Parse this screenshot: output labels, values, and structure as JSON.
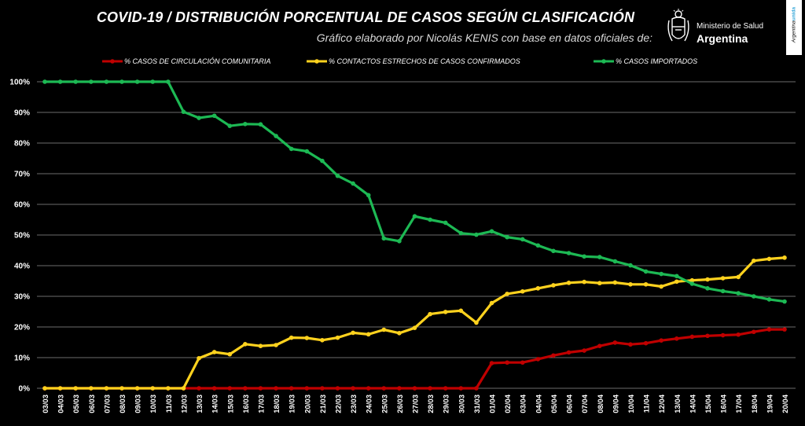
{
  "header": {
    "title": "COVID-19  /  DISTRIBUCIÓN PORCENTUAL DE CASOS SEGÚN CLASIFICACIÓN",
    "subtitle": "Gráfico elaborado por Nicolás KENIS con base en datos oficiales de:",
    "logo_line1": "Ministerio de Salud",
    "logo_line2": "Argentina",
    "badge_prefix": "Argentina",
    "badge_suffix": "unida"
  },
  "colors": {
    "background": "#000000",
    "comunitaria": "#c00000",
    "contactos": "#ffd21e",
    "importados": "#1db954",
    "grid": "#ffffff"
  },
  "chart_data": {
    "type": "line",
    "title": "COVID-19  /  DISTRIBUCIÓN PORCENTUAL DE CASOS SEGÚN CLASIFICACIÓN",
    "xlabel": "",
    "ylabel": "",
    "ylim": [
      0,
      100
    ],
    "yticks": [
      "0%",
      "10%",
      "20%",
      "30%",
      "40%",
      "50%",
      "60%",
      "70%",
      "80%",
      "90%",
      "100%"
    ],
    "grid": true,
    "legend_position": "top",
    "categories": [
      "03/03",
      "04/03",
      "05/03",
      "06/03",
      "07/03",
      "08/03",
      "09/03",
      "10/03",
      "11/03",
      "12/03",
      "13/03",
      "14/03",
      "15/03",
      "16/03",
      "17/03",
      "18/03",
      "19/03",
      "20/03",
      "21/03",
      "22/03",
      "23/03",
      "24/03",
      "25/03",
      "26/03",
      "27/03",
      "28/03",
      "29/03",
      "30/03",
      "31/03",
      "01/04",
      "02/04",
      "03/04",
      "04/04",
      "05/04",
      "06/04",
      "07/04",
      "08/04",
      "09/04",
      "10/04",
      "11/04",
      "12/04",
      "13/04",
      "14/04",
      "15/04",
      "16/04",
      "17/04",
      "18/04",
      "19/04",
      "20/04"
    ],
    "series": [
      {
        "name": "% CASOS DE CIRCULACIÓN COMUNITARIA",
        "color": "#c00000",
        "values": [
          0,
          0,
          0,
          0,
          0,
          0,
          0,
          0,
          0,
          0,
          0,
          0,
          0,
          0,
          0,
          0,
          0,
          0,
          0,
          0,
          0,
          0,
          0,
          0,
          0,
          0,
          0,
          0,
          0,
          8.2,
          8.4,
          8.4,
          9.5,
          10.7,
          11.7,
          12.3,
          13.8,
          14.9,
          14.3,
          14.7,
          15.6,
          16.2,
          16.8,
          17.1,
          17.3,
          17.5,
          18.4,
          19.2,
          19.2
        ]
      },
      {
        "name": "% CONTACTOS ESTRECHOS DE CASOS CONFIRMADOS",
        "color": "#ffd21e",
        "values": [
          0,
          0,
          0,
          0,
          0,
          0,
          0,
          0,
          0,
          0,
          9.8,
          11.8,
          11.1,
          14.4,
          13.8,
          14.1,
          16.5,
          16.4,
          15.7,
          16.5,
          18.1,
          17.6,
          19.1,
          18.0,
          19.7,
          24.2,
          24.9,
          25.3,
          21.4,
          27.8,
          30.8,
          31.6,
          32.6,
          33.6,
          34.4,
          34.7,
          34.3,
          34.5,
          33.9,
          33.9,
          33.2,
          34.8,
          35.2,
          35.5,
          35.9,
          36.3,
          41.6,
          42.2,
          42.6
        ]
      },
      {
        "name": "% CASOS IMPORTADOS",
        "color": "#1db954",
        "values": [
          100,
          100,
          100,
          100,
          100,
          100,
          100,
          100,
          100,
          90.2,
          88.2,
          88.9,
          85.6,
          86.2,
          86.1,
          82.3,
          78.1,
          77.3,
          74.2,
          69.3,
          66.8,
          63.0,
          48.9,
          48.0,
          56.1,
          55.0,
          54.0,
          50.6,
          50.1,
          51.2,
          49.3,
          48.6,
          46.6,
          44.8,
          44.1,
          43.0,
          42.8,
          41.4,
          40.1,
          38.1,
          37.3,
          36.6,
          34.1,
          32.6,
          31.7,
          31.0,
          30.0,
          29.0,
          28.3
        ]
      }
    ]
  }
}
